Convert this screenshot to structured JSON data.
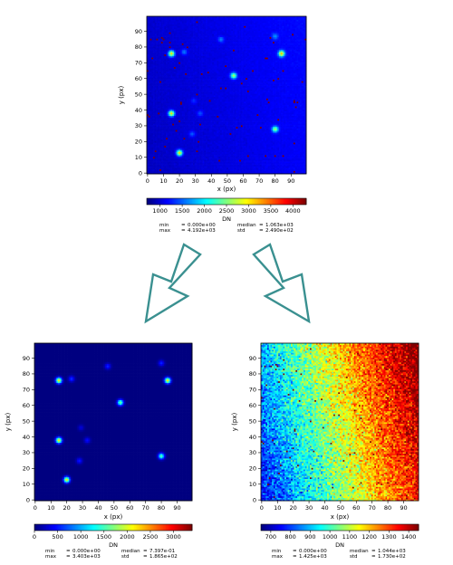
{
  "panels": [
    {
      "xlabel": "x (px)",
      "ylabel": "y (px)",
      "xticks": [
        "0",
        "10",
        "20",
        "30",
        "40",
        "50",
        "60",
        "70",
        "80",
        "90"
      ],
      "yticks": [
        "0",
        "10",
        "20",
        "30",
        "40",
        "50",
        "60",
        "70",
        "80",
        "90"
      ],
      "colorbar": {
        "label": "DN",
        "ticks": [
          "1000",
          "1500",
          "2000",
          "2500",
          "3000",
          "3500",
          "4000"
        ],
        "vmin": 700,
        "vmax": 4300
      },
      "stats": {
        "min_label": "min",
        "min_value": "0.000e+00",
        "max_label": "max",
        "max_value": "4.192e+03",
        "median_label": "median",
        "median_value": "1.063e+03",
        "std_label": "std",
        "std_value": "2.490e+02"
      }
    },
    {
      "xlabel": "x (px)",
      "ylabel": "y (px)",
      "xticks": [
        "0",
        "10",
        "20",
        "30",
        "40",
        "50",
        "60",
        "70",
        "80",
        "90"
      ],
      "yticks": [
        "0",
        "10",
        "20",
        "30",
        "40",
        "50",
        "60",
        "70",
        "80",
        "90"
      ],
      "colorbar": {
        "label": "DN",
        "ticks": [
          "0",
          "500",
          "1000",
          "1500",
          "2000",
          "2500",
          "3000"
        ],
        "vmin": 0,
        "vmax": 3400
      },
      "stats": {
        "min_label": "min",
        "min_value": "0.000e+00",
        "max_label": "max",
        "max_value": "3.403e+03",
        "median_label": "median",
        "median_value": "7.397e-01",
        "std_label": "std",
        "std_value": "1.865e+02"
      }
    },
    {
      "xlabel": "x (px)",
      "ylabel": "y (px)",
      "xticks": [
        "0",
        "10",
        "20",
        "30",
        "40",
        "50",
        "60",
        "70",
        "80",
        "90"
      ],
      "yticks": [
        "0",
        "10",
        "20",
        "30",
        "40",
        "50",
        "60",
        "70",
        "80",
        "90"
      ],
      "colorbar": {
        "label": "DN",
        "ticks": [
          "700",
          "800",
          "900",
          "1000",
          "1100",
          "1200",
          "1300",
          "1400"
        ],
        "vmin": 650,
        "vmax": 1450
      },
      "stats": {
        "min_label": "min",
        "min_value": "0.000e+00",
        "max_label": "max",
        "max_value": "1.425e+03",
        "median_label": "median",
        "median_value": "1.044e+03",
        "std_label": "std",
        "std_value": "1.730e+02"
      }
    }
  ],
  "stars": [
    {
      "x": 15,
      "y": 76,
      "amp": 2200
    },
    {
      "x": 23,
      "y": 77,
      "amp": 600
    },
    {
      "x": 46,
      "y": 85,
      "amp": 550
    },
    {
      "x": 80,
      "y": 87,
      "amp": 550
    },
    {
      "x": 84,
      "y": 76,
      "amp": 2200
    },
    {
      "x": 54,
      "y": 62,
      "amp": 1700
    },
    {
      "x": 15,
      "y": 38,
      "amp": 2200
    },
    {
      "x": 33,
      "y": 38,
      "amp": 450
    },
    {
      "x": 29,
      "y": 46,
      "amp": 300
    },
    {
      "x": 28,
      "y": 25,
      "amp": 500
    },
    {
      "x": 80,
      "y": 28,
      "amp": 1600
    },
    {
      "x": 20,
      "y": 13,
      "amp": 2200
    }
  ],
  "arrow_color": "#3a9090"
}
